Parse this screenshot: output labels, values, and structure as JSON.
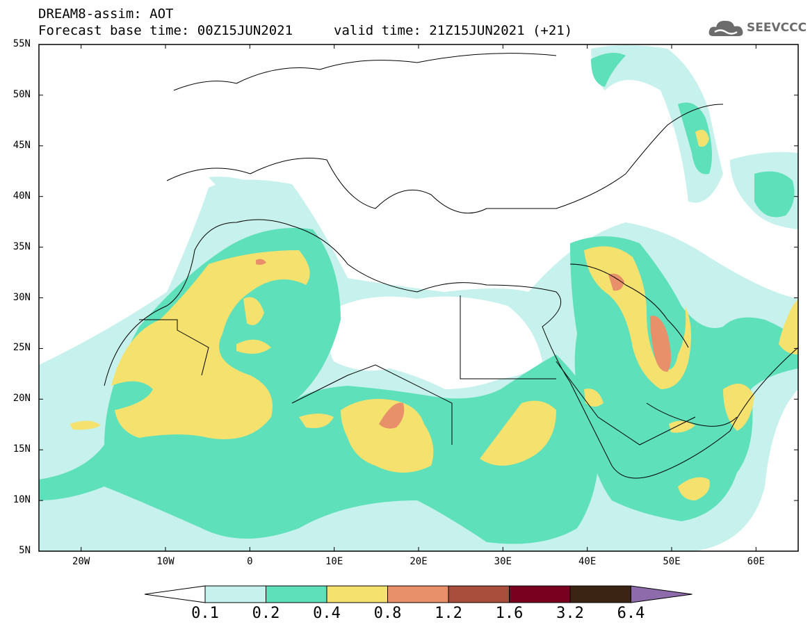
{
  "header": {
    "model_label": "DREAM8-assim: AOT",
    "base_time_label": "Forecast base time: 00Z15JUN2021",
    "valid_time_label": "valid time: 21Z15JUN2021 (+21)"
  },
  "logo": {
    "text": "SEEVCCC",
    "icon": "cloud-logo-icon"
  },
  "map": {
    "region": "North Africa, Europe and Middle East",
    "lat_labels": [
      "55N",
      "50N",
      "45N",
      "40N",
      "35N",
      "30N",
      "25N",
      "20N",
      "15N",
      "10N",
      "5N"
    ],
    "lon_labels": [
      "20W",
      "10W",
      "0",
      "10E",
      "20E",
      "30E",
      "40E",
      "50E",
      "60E"
    ],
    "lat_range": [
      5,
      55
    ],
    "lon_range": [
      -25,
      65
    ]
  },
  "colorbar": {
    "labels": [
      "0.1",
      "0.2",
      "0.4",
      "0.8",
      "1.2",
      "1.6",
      "3.2",
      "6.4"
    ],
    "colors": [
      "#ffffff",
      "#c7f1ec",
      "#5ee0bb",
      "#f5e26e",
      "#e8906a",
      "#a94e3c",
      "#7a0020",
      "#3b2413",
      "#8e6baa"
    ]
  },
  "colors": {
    "aot_0_1": "#c7f1ec",
    "aot_0_2": "#5ee0bb",
    "aot_0_4": "#f5e26e",
    "aot_0_8": "#e8906a",
    "aot_1_2": "#a94e3c"
  }
}
